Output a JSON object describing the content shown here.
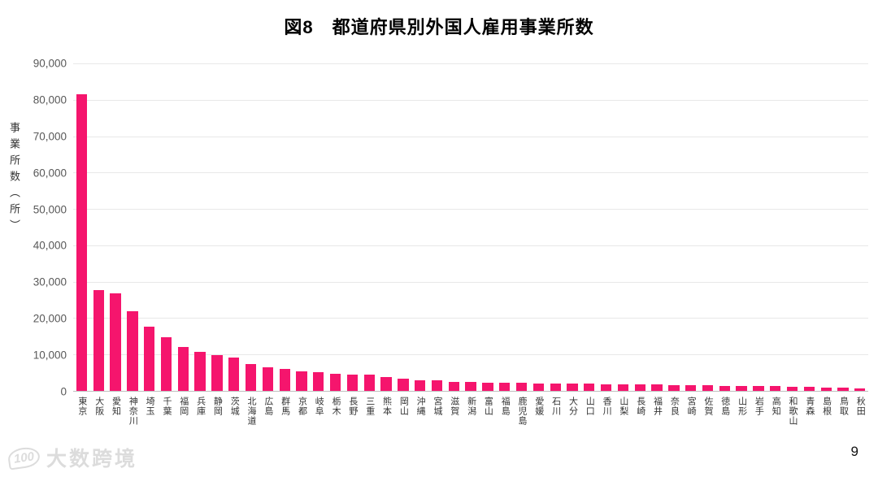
{
  "title": "図8　都道府県別外国人雇用事業所数",
  "page_number": "9",
  "watermark": {
    "logo": "100",
    "text": "大数跨境"
  },
  "colors": {
    "bar": "#F5156D",
    "grid": "#E8E8E8",
    "axis": "#BFBFBF",
    "tick_text": "#595959",
    "label_text": "#333333"
  },
  "chart_data": {
    "type": "bar",
    "title": "図8　都道府県別外国人雇用事業所数",
    "xlabel": "",
    "ylabel": "事業所数（所）",
    "ylim": [
      0,
      90000
    ],
    "ytick_interval": 10000,
    "ytick_labels": [
      "90,000",
      "80,000",
      "70,000",
      "60,000",
      "50,000",
      "40,000",
      "30,000",
      "20,000",
      "10,000",
      "0"
    ],
    "grid": "horizontal",
    "legend": "none",
    "categories": [
      "東京",
      "大阪",
      "愛知",
      "神奈川",
      "埼玉",
      "千葉",
      "福岡",
      "兵庫",
      "静岡",
      "茨城",
      "北海道",
      "広島",
      "群馬",
      "京都",
      "岐阜",
      "栃木",
      "長野",
      "三重",
      "熊本",
      "岡山",
      "沖縄",
      "宮城",
      "滋賀",
      "新潟",
      "富山",
      "福島",
      "鹿児島",
      "愛媛",
      "石川",
      "大分",
      "山口",
      "香川",
      "山梨",
      "長崎",
      "福井",
      "奈良",
      "宮崎",
      "佐賀",
      "徳島",
      "山形",
      "岩手",
      "高知",
      "和歌山",
      "青森",
      "島根",
      "鳥取",
      "秋田"
    ],
    "values": [
      81600,
      27800,
      26700,
      22000,
      17600,
      14700,
      12100,
      10800,
      9900,
      9100,
      7300,
      6400,
      6100,
      5300,
      5100,
      4600,
      4550,
      4500,
      3700,
      3400,
      3000,
      2900,
      2500,
      2450,
      2300,
      2250,
      2200,
      2100,
      2050,
      2000,
      1950,
      1900,
      1850,
      1800,
      1700,
      1650,
      1550,
      1500,
      1400,
      1350,
      1300,
      1250,
      1200,
      1150,
      1000,
      850,
      750
    ]
  }
}
